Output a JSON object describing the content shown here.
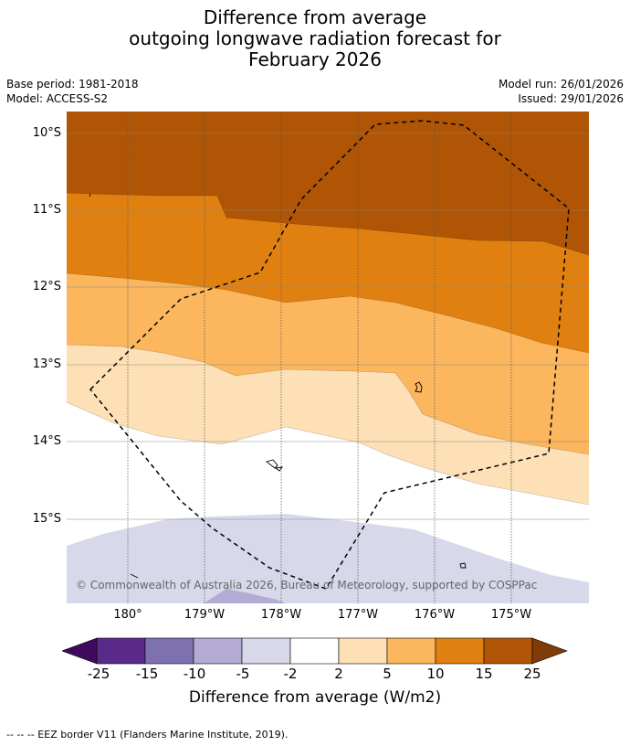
{
  "title": {
    "line1": "Difference from average",
    "line2": "outgoing longwave radiation forecast for",
    "line3": "February 2026"
  },
  "meta": {
    "base_period": "Base period: 1981-2018",
    "model": "Model: ACCESS-S2",
    "model_run": "Model run: 26/01/2026",
    "issued": "Issued: 29/01/2026"
  },
  "map": {
    "lat_labels": [
      "10°S",
      "11°S",
      "12°S",
      "13°S",
      "14°S",
      "15°S"
    ],
    "lon_labels": [
      "180°",
      "179°W",
      "178°W",
      "177°W",
      "176°W",
      "175°W"
    ],
    "copyright": "© Commonwealth of Australia 2026, Bureau of Meteorology, supported by COSPPac",
    "colors": {
      "c10_15": "#e08010",
      "c15_25": "#b05505",
      "c5_10": "#fbb65e",
      "c2_5": "#fde0b5",
      "cn2_n5": "#d8d8eb",
      "cn5_n10": "#b3abd3"
    }
  },
  "colorbar": {
    "ticks": [
      "-25",
      "-15",
      "-10",
      "-5",
      "-2",
      "2",
      "5",
      "10",
      "15",
      "25"
    ],
    "colors": [
      "#3f0a5e",
      "#5a2a8a",
      "#7e71b0",
      "#b3abd3",
      "#d8d8eb",
      "#ffffff",
      "#fde0b5",
      "#fbb65e",
      "#e08010",
      "#b05505",
      "#7f3b08"
    ],
    "label": "Difference from average (W/m2)"
  },
  "footer": "--  --  -- EEZ border V11 (Flanders Marine Institute, 2019)."
}
